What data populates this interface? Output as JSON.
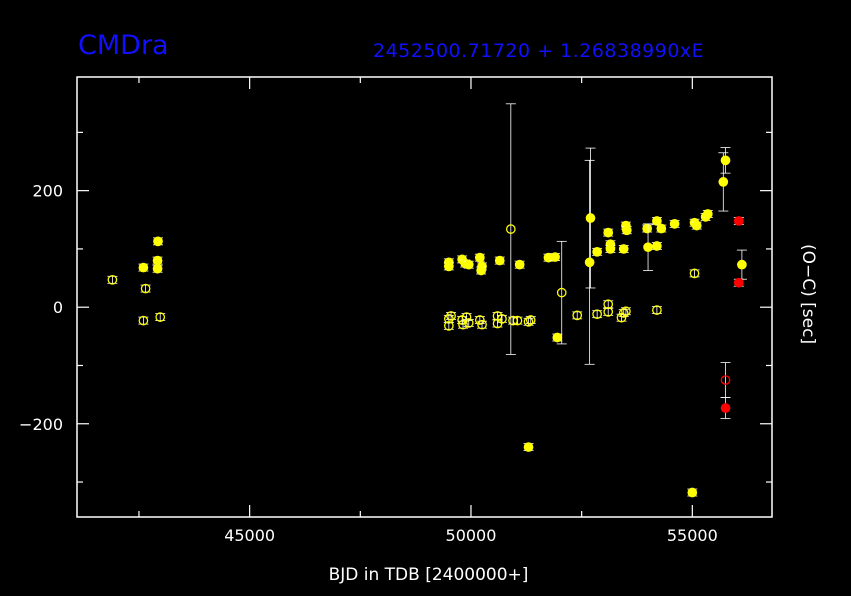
{
  "chart_data": {
    "type": "scatter",
    "title": "CMDra",
    "ephemeris": "2452500.71720  +   1.26838990xE",
    "xlabel": "BJD in TDB [2400000+]",
    "ylabel": "(O−C) [sec]",
    "xlim": [
      41100,
      56800
    ],
    "ylim": [
      -360,
      395
    ],
    "xticks": [
      45000,
      50000,
      55000
    ],
    "yticks": [
      -200,
      0,
      200
    ],
    "colors": {
      "background": "#000000",
      "axes": "#ffffff",
      "title": "#1010ff",
      "yellow": "#ffff00",
      "red": "#ff0000"
    },
    "series": [
      {
        "style": "filled-yellow",
        "points": [
          {
            "x": 42600,
            "y": 68
          },
          {
            "x": 42930,
            "y": 113
          },
          {
            "x": 42920,
            "y": 80
          },
          {
            "x": 42920,
            "y": 66
          },
          {
            "x": 49500,
            "y": 77
          },
          {
            "x": 49500,
            "y": 70
          },
          {
            "x": 49800,
            "y": 82
          },
          {
            "x": 49870,
            "y": 75
          },
          {
            "x": 49950,
            "y": 73
          },
          {
            "x": 50200,
            "y": 85
          },
          {
            "x": 50250,
            "y": 70
          },
          {
            "x": 50230,
            "y": 63
          },
          {
            "x": 50650,
            "y": 80
          },
          {
            "x": 51100,
            "y": 73
          },
          {
            "x": 51300,
            "y": -240
          },
          {
            "x": 51750,
            "y": 85
          },
          {
            "x": 51900,
            "y": 86
          },
          {
            "x": 51950,
            "y": -52
          },
          {
            "x": 52700,
            "y": 153,
            "err": 120
          },
          {
            "x": 52680,
            "y": 77,
            "err": 175
          },
          {
            "x": 52850,
            "y": 95
          },
          {
            "x": 53100,
            "y": 128
          },
          {
            "x": 53150,
            "y": 108
          },
          {
            "x": 53150,
            "y": 100
          },
          {
            "x": 53450,
            "y": 100
          },
          {
            "x": 53500,
            "y": 140
          },
          {
            "x": 53520,
            "y": 132
          },
          {
            "x": 53980,
            "y": 135
          },
          {
            "x": 54000,
            "y": 103,
            "err": 40
          },
          {
            "x": 54200,
            "y": 148
          },
          {
            "x": 54200,
            "y": 105
          },
          {
            "x": 54300,
            "y": 135
          },
          {
            "x": 54600,
            "y": 143
          },
          {
            "x": 55000,
            "y": -318
          },
          {
            "x": 55050,
            "y": 145
          },
          {
            "x": 55100,
            "y": 140
          },
          {
            "x": 55300,
            "y": 155
          },
          {
            "x": 55350,
            "y": 160
          },
          {
            "x": 55700,
            "y": 215,
            "err": 50
          },
          {
            "x": 55750,
            "y": 252,
            "err": 22
          },
          {
            "x": 56120,
            "y": 73,
            "err": 25
          }
        ]
      },
      {
        "style": "open-yellow",
        "points": [
          {
            "x": 41900,
            "y": 47
          },
          {
            "x": 42600,
            "y": -23
          },
          {
            "x": 42650,
            "y": 32
          },
          {
            "x": 42980,
            "y": -17
          },
          {
            "x": 49500,
            "y": -20
          },
          {
            "x": 49500,
            "y": -32
          },
          {
            "x": 49550,
            "y": -15
          },
          {
            "x": 49800,
            "y": -22
          },
          {
            "x": 49820,
            "y": -30
          },
          {
            "x": 49900,
            "y": -17
          },
          {
            "x": 49950,
            "y": -27
          },
          {
            "x": 50200,
            "y": -22
          },
          {
            "x": 50250,
            "y": -30
          },
          {
            "x": 50600,
            "y": -15
          },
          {
            "x": 50600,
            "y": -28
          },
          {
            "x": 50700,
            "y": -20
          },
          {
            "x": 50900,
            "y": 134,
            "err": 215
          },
          {
            "x": 50950,
            "y": -23
          },
          {
            "x": 51050,
            "y": -23
          },
          {
            "x": 51300,
            "y": -25
          },
          {
            "x": 51350,
            "y": -22
          },
          {
            "x": 52050,
            "y": 25,
            "err": 88
          },
          {
            "x": 52400,
            "y": -14
          },
          {
            "x": 52850,
            "y": -12
          },
          {
            "x": 53100,
            "y": 5
          },
          {
            "x": 53100,
            "y": -8
          },
          {
            "x": 53400,
            "y": -18
          },
          {
            "x": 53450,
            "y": -10
          },
          {
            "x": 53500,
            "y": -7
          },
          {
            "x": 54200,
            "y": -5
          },
          {
            "x": 55050,
            "y": 58
          }
        ]
      },
      {
        "style": "filled-red",
        "points": [
          {
            "x": 55750,
            "y": -173,
            "err": 18
          },
          {
            "x": 56050,
            "y": 148
          },
          {
            "x": 56050,
            "y": 42
          }
        ]
      },
      {
        "style": "open-red",
        "points": [
          {
            "x": 55750,
            "y": -125,
            "err": 30
          }
        ]
      }
    ]
  }
}
